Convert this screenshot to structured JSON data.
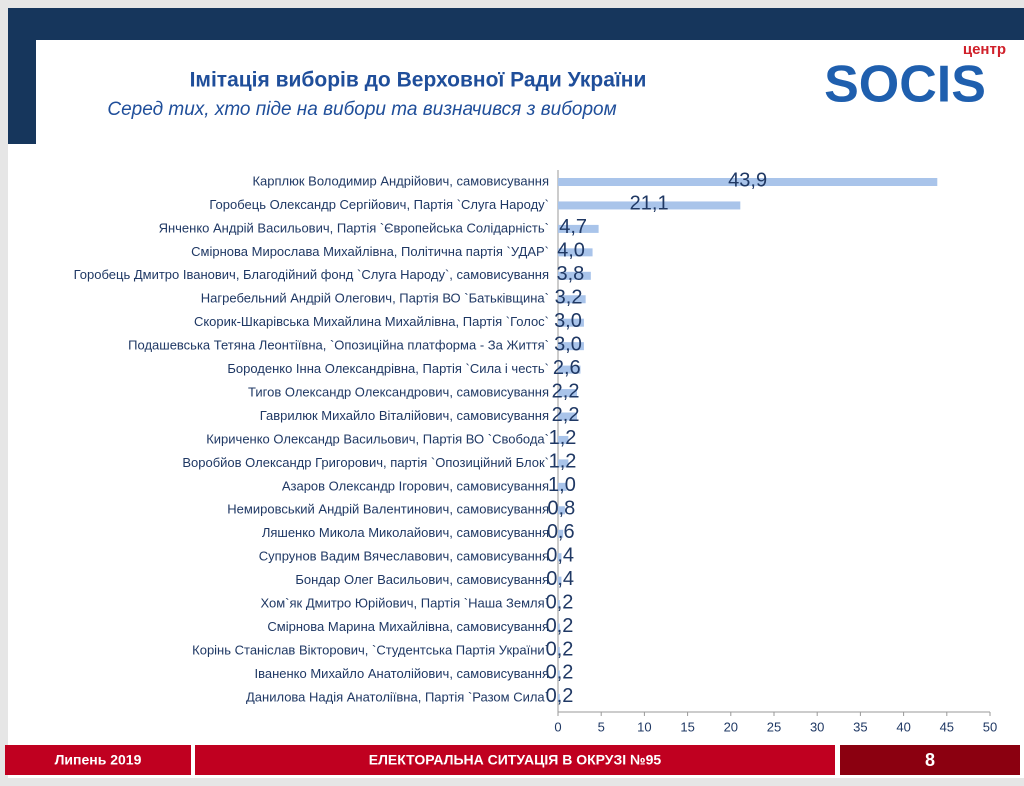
{
  "chart_data": {
    "type": "hbar",
    "title": "Імітація виборів до Верховної  Ради України",
    "subtitle": "Серед тих, хто піде на вибори та визначився з вибором",
    "categories": [
      "Карплюк Володимир Андрійович, самовисування",
      "Горобець Олександр Сергійович, Партія `Слуга Народу`",
      "Янченко Андрій Васильович, Партія `Європейська Солідарність`",
      "Смірнова Мирослава Михайлівна, Політична партія `УДАР`",
      "Горобець Дмитро Іванович, Благодійний фонд `Слуга Народу`, самовисування",
      "Нагребельний Андрій Олегович, Партія ВО `Батьківщина`",
      "Скорик-Шкарівська Михайлина Михайлівна, Партія `Голос`",
      "Подашевська Тетяна Леонтіївна,  `Опозиційна платформа - За Життя`",
      "Бороденко Інна Олександрівна, Партія `Сила і честь`",
      "Тигов Олександр Олександрович, самовисування",
      "Гаврилюк Михайло Віталійович, самовисування",
      "Кириченко Олександр Васильович, Партія ВО `Свобода`",
      "Воробйов Олександр Григорович, партія `Опозиційний Блок`",
      "Азаров Олександр Ігорович, самовисування",
      "Немировський Андрій Валентинович, самовисування",
      "Ляшенко Микола Миколайович, самовисування",
      "Супрунов Вадим Вячеславович, самовисування",
      "Бондар Олег Васильович, самовисування",
      "Хом`як Дмитро Юрійович, Партія `Наша Земля`",
      "Смірнова Марина Михайлівна, самовисування",
      "Корінь Станіслав Вікторович, `Студентська Партія України`",
      "Іваненко Михайло Анатолійович, самовисування",
      "Данилова Надія Анатоліївна, Партія `Разом Сила`"
    ],
    "values": [
      43.9,
      21.1,
      4.7,
      4.0,
      3.8,
      3.2,
      3.0,
      3.0,
      2.6,
      2.2,
      2.2,
      1.2,
      1.2,
      1.0,
      0.8,
      0.6,
      0.4,
      0.4,
      0.2,
      0.2,
      0.2,
      0.2,
      0.2
    ],
    "value_labels": [
      "43,9",
      "21,1",
      "4,7",
      "4,0",
      "3,8",
      "3,2",
      "3,0",
      "3,0",
      "2,6",
      "2,2",
      "2,2",
      "1,2",
      "1,2",
      "1,0",
      "0,8",
      "0,6",
      "0,4",
      "0,4",
      "0,2",
      "0,2",
      "0,2",
      "0,2",
      "0,2"
    ],
    "color": "#a9c4ea",
    "xlim": [
      0,
      50
    ],
    "xticks": [
      0,
      5,
      10,
      15,
      20,
      25,
      30,
      35,
      40,
      45,
      50
    ]
  },
  "logo": {
    "small": "центр",
    "main": "SOCIS"
  },
  "footer": {
    "date": "Липень 2019",
    "topic": "ЕЛЕКТОРАЛЬНА СИТУАЦІЯ В ОКРУЗІ №95",
    "page": 8
  }
}
